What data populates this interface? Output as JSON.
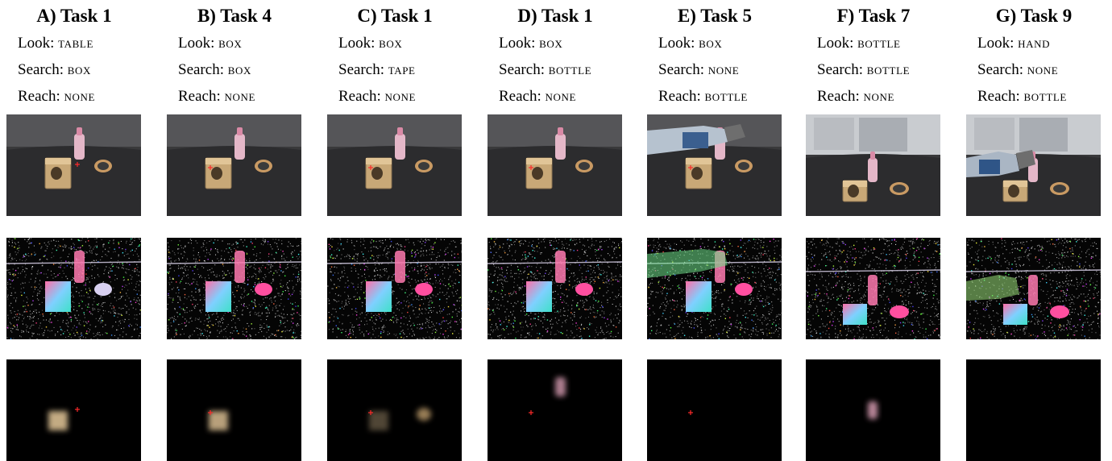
{
  "figure": {
    "labels": {
      "look": "Look:",
      "search": "Search:",
      "reach": "Reach:"
    },
    "columns": [
      {
        "title": "A) Task 1",
        "look": "TABLE",
        "search": "BOX",
        "reach": "NONE",
        "view": "table",
        "arm": "none",
        "marker": "right",
        "attention": [
          {
            "obj": "box",
            "intensity": 0.85
          }
        ]
      },
      {
        "title": "B) Task 4",
        "look": "BOX",
        "search": "BOX",
        "reach": "NONE",
        "view": "table",
        "arm": "none",
        "marker": "box",
        "attention": [
          {
            "obj": "box",
            "intensity": 0.8
          }
        ]
      },
      {
        "title": "C) Task 1",
        "look": "BOX",
        "search": "TAPE",
        "reach": "NONE",
        "view": "table",
        "arm": "none",
        "marker": "box",
        "attention": [
          {
            "obj": "box",
            "intensity": 0.35
          },
          {
            "obj": "tape",
            "intensity": 0.7
          }
        ]
      },
      {
        "title": "D) Task 1",
        "look": "BOX",
        "search": "BOTTLE",
        "reach": "NONE",
        "view": "table",
        "arm": "none",
        "marker": "box",
        "attention": [
          {
            "obj": "bottle",
            "intensity": 0.75
          }
        ]
      },
      {
        "title": "E) Task 5",
        "look": "BOX",
        "search": "NONE",
        "reach": "BOTTLE",
        "view": "table",
        "arm": "right",
        "marker": "box",
        "attention": []
      },
      {
        "title": "F) Task 7",
        "look": "BOTTLE",
        "search": "BOTTLE",
        "reach": "NONE",
        "view": "far",
        "arm": "none",
        "marker": "none",
        "attention": [
          {
            "obj": "bottle",
            "intensity": 0.8
          }
        ]
      },
      {
        "title": "G) Task 9",
        "look": "HAND",
        "search": "NONE",
        "reach": "BOTTLE",
        "view": "far",
        "arm": "left",
        "marker": "none",
        "attention": []
      }
    ],
    "colors": {
      "marker": "#ff2a2a",
      "background": "#ffffff"
    }
  }
}
